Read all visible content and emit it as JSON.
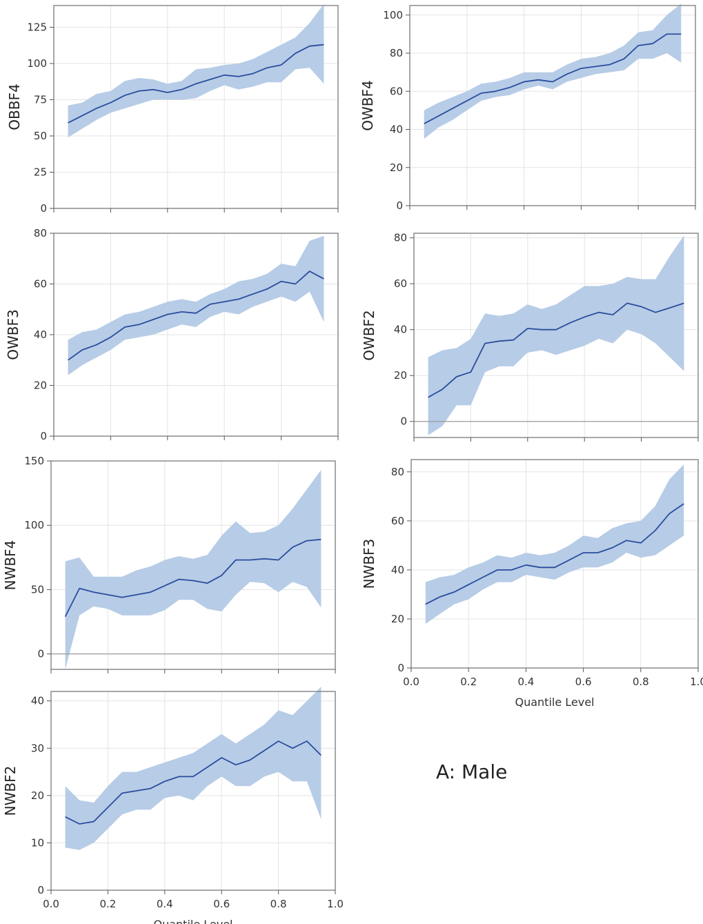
{
  "figure": {
    "panel_label": "A: Male"
  },
  "chart_data": [
    {
      "type": "line",
      "ylabel": "OBBF4",
      "xlabel": "",
      "xlim": [
        0,
        1
      ],
      "ylim": [
        0,
        140
      ],
      "yticks": [
        0,
        25,
        50,
        75,
        100,
        125
      ],
      "ytick_labels": [
        "0",
        "25",
        "50",
        "75",
        "100",
        "125"
      ],
      "x": [
        0.05,
        0.1,
        0.15,
        0.2,
        0.25,
        0.3,
        0.35,
        0.4,
        0.45,
        0.5,
        0.55,
        0.6,
        0.65,
        0.7,
        0.75,
        0.8,
        0.85,
        0.9,
        0.95
      ],
      "series": [
        {
          "name": "estimate",
          "values": [
            59,
            64,
            69,
            73,
            78,
            81,
            82,
            80,
            82,
            86,
            89,
            92,
            91,
            93,
            97,
            99,
            107,
            112,
            113
          ]
        },
        {
          "name": "lower",
          "values": [
            49,
            55,
            61,
            66,
            69,
            72,
            75,
            75,
            75,
            76,
            81,
            85,
            82,
            84,
            87,
            87,
            96,
            97,
            86
          ]
        },
        {
          "name": "upper",
          "values": [
            71,
            73,
            79,
            81,
            88,
            90,
            89,
            86,
            88,
            96,
            97,
            99,
            100,
            103,
            108,
            113,
            118,
            128,
            141
          ]
        }
      ]
    },
    {
      "type": "line",
      "ylabel": "OWBF4",
      "xlabel": "",
      "xlim": [
        0,
        1
      ],
      "ylim": [
        0,
        105
      ],
      "yticks": [
        0,
        20,
        40,
        60,
        80,
        100
      ],
      "ytick_labels": [
        "0",
        "20",
        "40",
        "60",
        "80",
        "100"
      ],
      "x": [
        0.05,
        0.1,
        0.15,
        0.2,
        0.25,
        0.3,
        0.35,
        0.4,
        0.45,
        0.5,
        0.55,
        0.6,
        0.65,
        0.7,
        0.75,
        0.8,
        0.85,
        0.9,
        0.95
      ],
      "series": [
        {
          "name": "estimate",
          "values": [
            43,
            47,
            51,
            55,
            59,
            60,
            62,
            65,
            66,
            65,
            69,
            72,
            73,
            74,
            77,
            84,
            85,
            90,
            90
          ]
        },
        {
          "name": "lower",
          "values": [
            35,
            41,
            45,
            50,
            55,
            57,
            58,
            61,
            63,
            61,
            65,
            67,
            69,
            70,
            71,
            77,
            77,
            80,
            75
          ]
        },
        {
          "name": "upper",
          "values": [
            50,
            54,
            57,
            60,
            64,
            65,
            67,
            70,
            70,
            70,
            74,
            77,
            78,
            80,
            84,
            91,
            92,
            100,
            106
          ]
        }
      ]
    },
    {
      "type": "line",
      "ylabel": "OWBF3",
      "xlabel": "",
      "xlim": [
        0,
        1
      ],
      "ylim": [
        0,
        80
      ],
      "yticks": [
        0,
        20,
        40,
        60,
        80
      ],
      "ytick_labels": [
        "0",
        "20",
        "40",
        "60",
        "80"
      ],
      "x": [
        0.05,
        0.1,
        0.15,
        0.2,
        0.25,
        0.3,
        0.35,
        0.4,
        0.45,
        0.5,
        0.55,
        0.6,
        0.65,
        0.7,
        0.75,
        0.8,
        0.85,
        0.9,
        0.95
      ],
      "series": [
        {
          "name": "estimate",
          "values": [
            30,
            34,
            36,
            39,
            43,
            44,
            46,
            48,
            49,
            48.5,
            52,
            53,
            54,
            56,
            58,
            61,
            60,
            65,
            62
          ]
        },
        {
          "name": "lower",
          "values": [
            24,
            28,
            31,
            34,
            38,
            39,
            40,
            42,
            44,
            43,
            47,
            49,
            48,
            51,
            53,
            55,
            53,
            57,
            45
          ]
        },
        {
          "name": "upper",
          "values": [
            38,
            41,
            42,
            45,
            48,
            49,
            51,
            53,
            54,
            53,
            56,
            58,
            61,
            62,
            64,
            68,
            67,
            77,
            79
          ]
        }
      ]
    },
    {
      "type": "line",
      "ylabel": "OWBF2",
      "xlabel": "",
      "xlim": [
        0,
        1
      ],
      "ylim": [
        -7,
        82
      ],
      "yticks": [
        0,
        20,
        40,
        60,
        80
      ],
      "ytick_labels": [
        "0",
        "20",
        "40",
        "60",
        "80"
      ],
      "zero_line": true,
      "x": [
        0.05,
        0.1,
        0.15,
        0.2,
        0.25,
        0.3,
        0.35,
        0.4,
        0.45,
        0.5,
        0.55,
        0.6,
        0.65,
        0.7,
        0.75,
        0.8,
        0.85,
        0.9,
        0.95
      ],
      "series": [
        {
          "name": "estimate",
          "values": [
            10.5,
            14,
            19.5,
            21.5,
            34,
            35,
            35.5,
            40.5,
            40,
            40,
            43,
            45.5,
            47.5,
            46.5,
            51.5,
            50,
            47.5,
            49.5,
            51.5
          ]
        },
        {
          "name": "lower",
          "values": [
            -6,
            -2,
            7,
            7,
            21.5,
            24,
            24,
            30,
            31,
            29,
            31,
            33,
            36,
            34,
            40,
            38,
            34,
            28,
            22
          ]
        },
        {
          "name": "upper",
          "values": [
            28,
            31,
            32,
            36,
            47,
            46,
            47,
            51,
            49,
            51,
            55,
            59,
            59,
            60,
            63,
            62,
            62,
            72,
            81
          ]
        }
      ]
    },
    {
      "type": "line",
      "ylabel": "NWBF4",
      "xlabel": "",
      "xlim": [
        0,
        1
      ],
      "ylim": [
        -12,
        150
      ],
      "yticks": [
        0,
        50,
        100,
        150
      ],
      "ytick_labels": [
        "0",
        "50",
        "100",
        "150"
      ],
      "zero_line": true,
      "x": [
        0.05,
        0.1,
        0.15,
        0.2,
        0.25,
        0.3,
        0.35,
        0.4,
        0.45,
        0.5,
        0.55,
        0.6,
        0.65,
        0.7,
        0.75,
        0.8,
        0.85,
        0.9,
        0.95
      ],
      "series": [
        {
          "name": "estimate",
          "values": [
            29,
            51,
            48,
            46,
            44,
            46,
            48,
            53,
            58,
            57,
            55,
            61,
            73,
            73,
            74,
            73,
            83,
            88,
            89
          ]
        },
        {
          "name": "lower",
          "values": [
            -12,
            30,
            37,
            35,
            30,
            30,
            30,
            34,
            42,
            42,
            35,
            33,
            46,
            56,
            55,
            48,
            56,
            52,
            36
          ]
        },
        {
          "name": "upper",
          "values": [
            72,
            75,
            60,
            60,
            60,
            65,
            68,
            73,
            76,
            74,
            77,
            92,
            103,
            94,
            95,
            100,
            113,
            128,
            143
          ]
        }
      ]
    },
    {
      "type": "line",
      "ylabel": "NWBF3",
      "xlabel": "Quantile Level",
      "xlim": [
        0,
        1
      ],
      "ylim": [
        0,
        85
      ],
      "yticks": [
        0,
        20,
        40,
        60,
        80
      ],
      "ytick_labels": [
        "0",
        "20",
        "40",
        "60",
        "80"
      ],
      "xticks": [
        0,
        0.2,
        0.4,
        0.6,
        0.8,
        1.0
      ],
      "xtick_labels": [
        "0.0",
        "0.2",
        "0.4",
        "0.6",
        "0.8",
        "1.0"
      ],
      "x": [
        0.05,
        0.1,
        0.15,
        0.2,
        0.25,
        0.3,
        0.35,
        0.4,
        0.45,
        0.5,
        0.55,
        0.6,
        0.65,
        0.7,
        0.75,
        0.8,
        0.85,
        0.9,
        0.95
      ],
      "series": [
        {
          "name": "estimate",
          "values": [
            26,
            29,
            31,
            34,
            37,
            40,
            40,
            42,
            41,
            41,
            44,
            47,
            47,
            49,
            52,
            51,
            56,
            63,
            67
          ]
        },
        {
          "name": "lower",
          "values": [
            18,
            22,
            26,
            28,
            32,
            35,
            35,
            38,
            37,
            36,
            39,
            41,
            41,
            43,
            47,
            45,
            46,
            50,
            54
          ]
        },
        {
          "name": "upper",
          "values": [
            35,
            37,
            38,
            41,
            43,
            46,
            45,
            47,
            46,
            47,
            50,
            54,
            53,
            57,
            59,
            60,
            66,
            77,
            83
          ]
        }
      ]
    },
    {
      "type": "line",
      "ylabel": "NWBF2",
      "xlabel": "Quantile Level",
      "xlim": [
        0,
        1
      ],
      "ylim": [
        0,
        42
      ],
      "yticks": [
        0,
        10,
        20,
        30,
        40
      ],
      "ytick_labels": [
        "0",
        "10",
        "20",
        "30",
        "40"
      ],
      "xticks": [
        0,
        0.2,
        0.4,
        0.6,
        0.8,
        1.0
      ],
      "xtick_labels": [
        "0.0",
        "0.2",
        "0.4",
        "0.6",
        "0.8",
        "1.0"
      ],
      "x": [
        0.05,
        0.1,
        0.15,
        0.2,
        0.25,
        0.3,
        0.35,
        0.4,
        0.45,
        0.5,
        0.55,
        0.6,
        0.65,
        0.7,
        0.75,
        0.8,
        0.85,
        0.9,
        0.95
      ],
      "series": [
        {
          "name": "estimate",
          "values": [
            15.5,
            14,
            14.5,
            17.5,
            20.5,
            21,
            21.5,
            23,
            24,
            24,
            26,
            28,
            26.5,
            27.5,
            29.5,
            31.5,
            30,
            31.5,
            28.5
          ]
        },
        {
          "name": "lower",
          "values": [
            9,
            8.5,
            10,
            13,
            16,
            17,
            17,
            19.5,
            20,
            19,
            22,
            24,
            22,
            22,
            24,
            25,
            23,
            23,
            15
          ]
        },
        {
          "name": "upper",
          "values": [
            22,
            19,
            18.5,
            22,
            25,
            25,
            26,
            27,
            28,
            29,
            31,
            33,
            31,
            33,
            35,
            38,
            37,
            40,
            43
          ]
        }
      ]
    }
  ]
}
